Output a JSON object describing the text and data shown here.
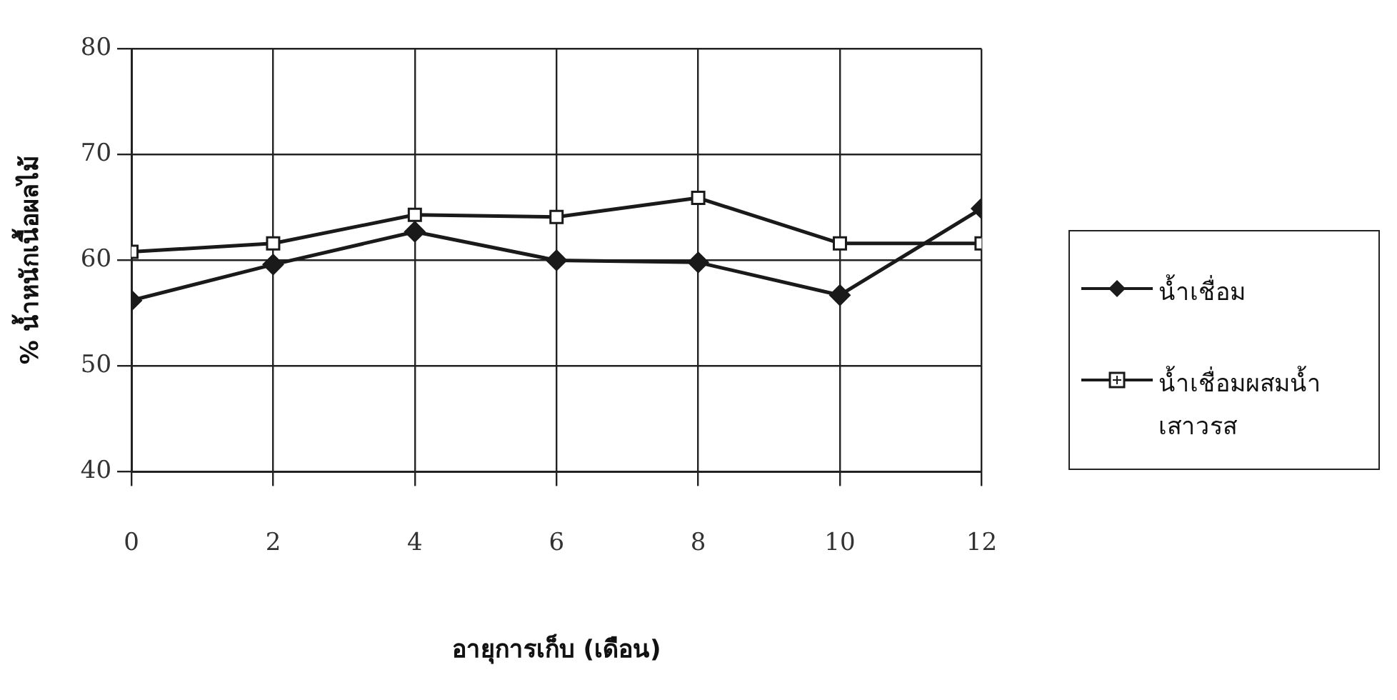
{
  "chart_data": {
    "type": "line",
    "xlabel": "อายุการเก็บ (เดือน)",
    "ylabel": "% น้ำหนักเนื้อผลไม้",
    "x": [
      0,
      2,
      4,
      6,
      8,
      10,
      12
    ],
    "series": [
      {
        "name": "น้ำเชื่อม",
        "color": "#1a1a1a",
        "marker": "diamond",
        "values": [
          56.2,
          59.6,
          62.7,
          60.0,
          59.8,
          56.7,
          64.9
        ]
      },
      {
        "name": "น้ำเชื่อมผสมน้ำเสาวรส",
        "color": "#1a1a1a",
        "marker": "square",
        "values": [
          60.8,
          61.6,
          64.3,
          64.1,
          65.9,
          61.6,
          61.6
        ]
      }
    ],
    "xlim": [
      0,
      12
    ],
    "xticks": [
      0,
      2,
      4,
      6,
      8,
      10,
      12
    ],
    "ylim": [
      40,
      80
    ],
    "yticks": [
      40,
      50,
      60,
      70,
      80
    ],
    "grid": true,
    "legend": "right",
    "line_style": "solid"
  }
}
